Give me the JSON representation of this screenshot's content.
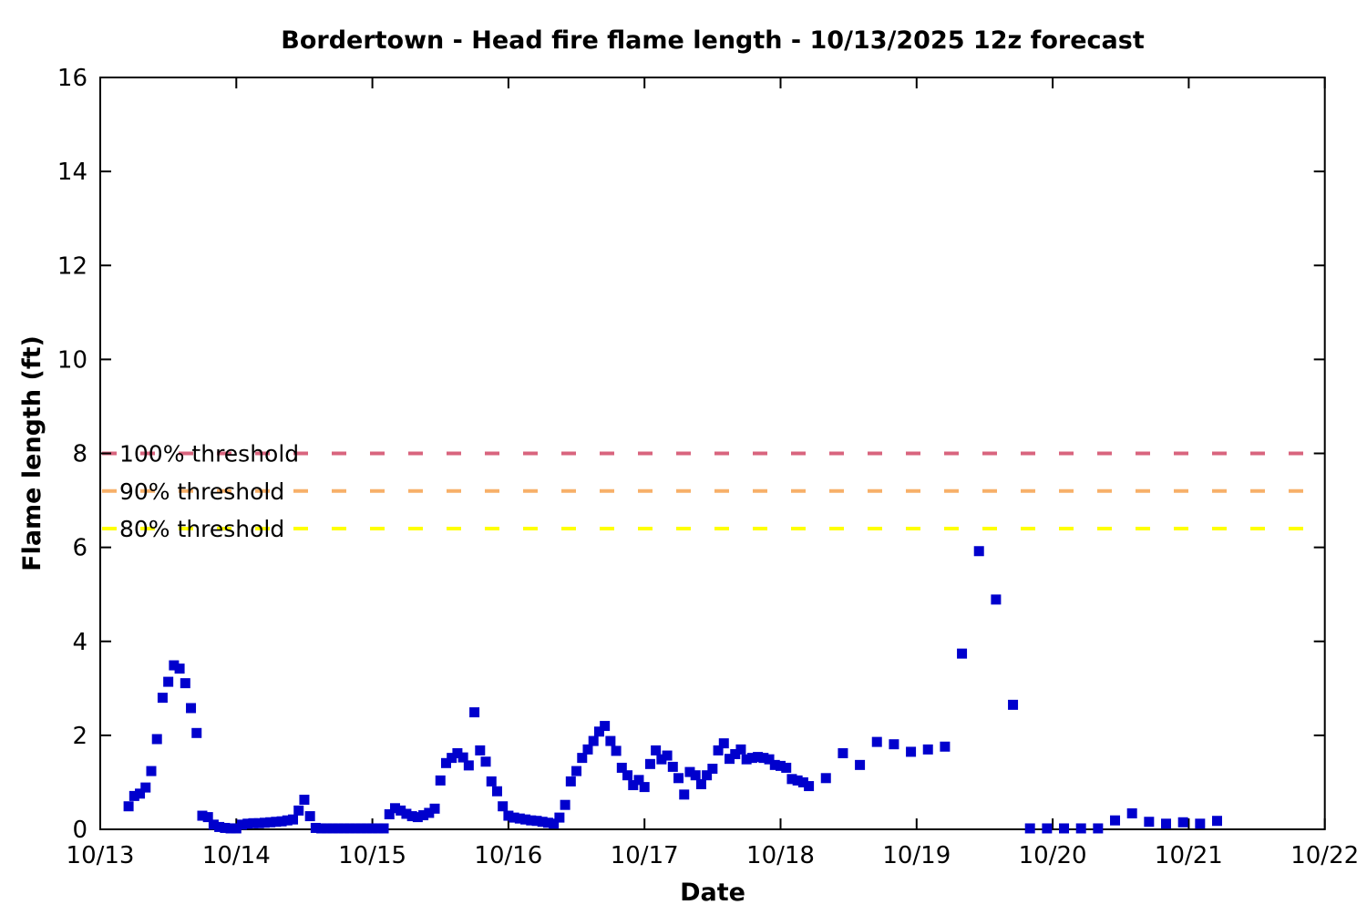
{
  "page": {
    "background": "#ffffff"
  },
  "chart_data": {
    "type": "scatter",
    "title": "Bordertown - Head fire flame length - 10/13/2025 12z forecast",
    "xlabel": "Date",
    "ylabel": "Flame length (ft)",
    "x_tick_labels": [
      "10/13",
      "10/14",
      "10/15",
      "10/16",
      "10/17",
      "10/18",
      "10/19",
      "10/20",
      "10/21",
      "10/22"
    ],
    "y_ticks": [
      0,
      2,
      4,
      6,
      8,
      10,
      12,
      14,
      16
    ],
    "xlim_days": [
      0,
      9
    ],
    "ylim": [
      0,
      16
    ],
    "grid": false,
    "legend_position": "none",
    "frame_style": "boxed frame, inward mirrored ticks, gnuplot style",
    "marker_color": "#0000cd",
    "thresholds": [
      {
        "label": "100% threshold",
        "value": 8.0,
        "color": "#d9647e"
      },
      {
        "label": "90% threshold",
        "value": 7.2,
        "color": "#f7b069"
      },
      {
        "label": "80% threshold",
        "value": 6.4,
        "color": "#ffff00"
      }
    ],
    "series": [
      {
        "name": "Head fire flame length",
        "marker": "filled-square",
        "color": "#0000cd",
        "points_format": "[days_since_10/13_00:00_local, flame_length_ft]",
        "points": [
          [
            0.2083,
            0.49
          ],
          [
            0.25,
            0.71
          ],
          [
            0.2917,
            0.76
          ],
          [
            0.3333,
            0.89
          ],
          [
            0.375,
            1.24
          ],
          [
            0.4167,
            1.92
          ],
          [
            0.4583,
            2.8
          ],
          [
            0.5,
            3.14
          ],
          [
            0.5417,
            3.49
          ],
          [
            0.5833,
            3.42
          ],
          [
            0.625,
            3.11
          ],
          [
            0.6667,
            2.58
          ],
          [
            0.7083,
            2.05
          ],
          [
            0.75,
            0.29
          ],
          [
            0.7917,
            0.26
          ],
          [
            0.8333,
            0.1
          ],
          [
            0.875,
            0.05
          ],
          [
            0.9167,
            0.03
          ],
          [
            0.9583,
            0.02
          ],
          [
            1.0,
            0.02
          ],
          [
            1.0417,
            0.1
          ],
          [
            1.0833,
            0.12
          ],
          [
            1.125,
            0.13
          ],
          [
            1.1667,
            0.13
          ],
          [
            1.2083,
            0.14
          ],
          [
            1.25,
            0.15
          ],
          [
            1.2917,
            0.16
          ],
          [
            1.3333,
            0.17
          ],
          [
            1.375,
            0.19
          ],
          [
            1.4167,
            0.21
          ],
          [
            1.4583,
            0.4
          ],
          [
            1.5,
            0.63
          ],
          [
            1.5417,
            0.28
          ],
          [
            1.5833,
            0.03
          ],
          [
            1.625,
            0.02
          ],
          [
            1.6667,
            0.02
          ],
          [
            1.7083,
            0.02
          ],
          [
            1.75,
            0.02
          ],
          [
            1.7917,
            0.02
          ],
          [
            1.8333,
            0.02
          ],
          [
            1.875,
            0.02
          ],
          [
            1.9167,
            0.02
          ],
          [
            1.9583,
            0.02
          ],
          [
            2.0,
            0.02
          ],
          [
            2.0417,
            0.02
          ],
          [
            2.0833,
            0.02
          ],
          [
            2.125,
            0.32
          ],
          [
            2.1667,
            0.45
          ],
          [
            2.2083,
            0.4
          ],
          [
            2.25,
            0.33
          ],
          [
            2.2917,
            0.28
          ],
          [
            2.3333,
            0.26
          ],
          [
            2.375,
            0.3
          ],
          [
            2.4167,
            0.35
          ],
          [
            2.4583,
            0.44
          ],
          [
            2.5,
            1.04
          ],
          [
            2.5417,
            1.41
          ],
          [
            2.5833,
            1.52
          ],
          [
            2.625,
            1.62
          ],
          [
            2.6667,
            1.53
          ],
          [
            2.7083,
            1.36
          ],
          [
            2.75,
            2.49
          ],
          [
            2.7917,
            1.68
          ],
          [
            2.8333,
            1.44
          ],
          [
            2.875,
            1.02
          ],
          [
            2.9167,
            0.81
          ],
          [
            2.9583,
            0.49
          ],
          [
            3.0,
            0.29
          ],
          [
            3.0417,
            0.25
          ],
          [
            3.0833,
            0.23
          ],
          [
            3.125,
            0.21
          ],
          [
            3.1667,
            0.19
          ],
          [
            3.2083,
            0.18
          ],
          [
            3.25,
            0.16
          ],
          [
            3.2917,
            0.14
          ],
          [
            3.3333,
            0.12
          ],
          [
            3.375,
            0.25
          ],
          [
            3.4167,
            0.52
          ],
          [
            3.4583,
            1.02
          ],
          [
            3.5,
            1.24
          ],
          [
            3.5417,
            1.52
          ],
          [
            3.5833,
            1.7
          ],
          [
            3.625,
            1.88
          ],
          [
            3.6667,
            2.08
          ],
          [
            3.7083,
            2.2
          ],
          [
            3.75,
            1.88
          ],
          [
            3.7917,
            1.67
          ],
          [
            3.8333,
            1.31
          ],
          [
            3.875,
            1.15
          ],
          [
            3.9167,
            0.94
          ],
          [
            3.9583,
            1.05
          ],
          [
            4.0,
            0.9
          ],
          [
            4.0417,
            1.39
          ],
          [
            4.0833,
            1.68
          ],
          [
            4.125,
            1.49
          ],
          [
            4.1667,
            1.57
          ],
          [
            4.2083,
            1.33
          ],
          [
            4.25,
            1.09
          ],
          [
            4.2917,
            0.74
          ],
          [
            4.3333,
            1.22
          ],
          [
            4.375,
            1.15
          ],
          [
            4.4167,
            0.96
          ],
          [
            4.4583,
            1.15
          ],
          [
            4.5,
            1.29
          ],
          [
            4.5417,
            1.68
          ],
          [
            4.5833,
            1.83
          ],
          [
            4.625,
            1.5
          ],
          [
            4.6667,
            1.6
          ],
          [
            4.7083,
            1.7
          ],
          [
            4.75,
            1.49
          ],
          [
            4.7917,
            1.52
          ],
          [
            4.8333,
            1.54
          ],
          [
            4.875,
            1.52
          ],
          [
            4.9167,
            1.49
          ],
          [
            4.9583,
            1.37
          ],
          [
            5.0,
            1.35
          ],
          [
            5.0417,
            1.31
          ],
          [
            5.0833,
            1.07
          ],
          [
            5.125,
            1.04
          ],
          [
            5.1667,
            1.0
          ],
          [
            5.2083,
            0.92
          ],
          [
            5.3333,
            1.09
          ],
          [
            5.4583,
            1.62
          ],
          [
            5.5833,
            1.37
          ],
          [
            5.7083,
            1.86
          ],
          [
            5.8333,
            1.81
          ],
          [
            5.9583,
            1.65
          ],
          [
            6.0833,
            1.7
          ],
          [
            6.2083,
            1.76
          ],
          [
            6.3333,
            3.74
          ],
          [
            6.4583,
            5.92
          ],
          [
            6.5833,
            4.89
          ],
          [
            6.7083,
            2.65
          ],
          [
            6.8333,
            0.02
          ],
          [
            6.9583,
            0.02
          ],
          [
            7.0833,
            0.02
          ],
          [
            7.2083,
            0.02
          ],
          [
            7.3333,
            0.02
          ],
          [
            7.4583,
            0.19
          ],
          [
            7.5833,
            0.34
          ],
          [
            7.7083,
            0.16
          ],
          [
            7.8333,
            0.12
          ],
          [
            7.9583,
            0.15
          ],
          [
            8.0833,
            0.12
          ],
          [
            8.2083,
            0.18
          ]
        ]
      }
    ]
  }
}
